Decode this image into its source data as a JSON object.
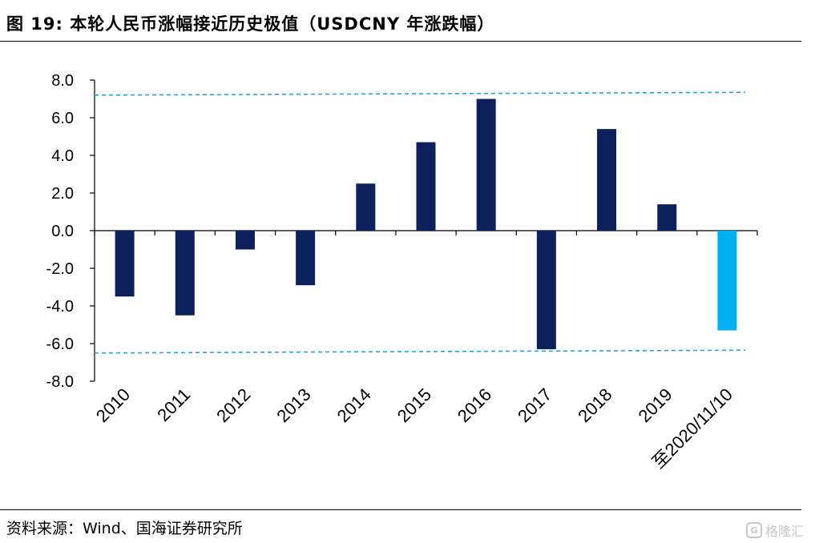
{
  "figure_title": "图 19:  本轮人民币涨幅接近历史极值（USDCNY 年涨跌幅）",
  "source_note": "资料来源：Wind、国海证券研究所",
  "watermark": {
    "brand_text": "格隆汇",
    "logo_glyph": "G"
  },
  "colors": {
    "bar_main": "#0c215b",
    "bar_highlight": "#00b0f0",
    "reference_line": "#19a6e0",
    "axis": "#000000"
  },
  "chart_data": {
    "type": "bar",
    "title": "本轮人民币涨幅接近历史极值（USDCNY 年涨跌幅）",
    "xlabel": "",
    "ylabel": "",
    "categories": [
      "2010",
      "2011",
      "2012",
      "2013",
      "2014",
      "2015",
      "2016",
      "2017",
      "2018",
      "2019",
      "至2020/11/10"
    ],
    "values": [
      -3.5,
      -4.5,
      -1.0,
      -2.9,
      2.5,
      4.7,
      7.0,
      -6.3,
      5.4,
      1.4,
      -5.3
    ],
    "highlight_category": "至2020/11/10",
    "ylim": [
      -8.0,
      8.0
    ],
    "yticks": [
      8.0,
      6.0,
      4.0,
      2.0,
      0.0,
      -2.0,
      -4.0,
      -6.0,
      -8.0
    ],
    "ytick_labels": [
      "8.0",
      "6.0",
      "4.0",
      "2.0",
      "0.0",
      "-2.0",
      "-4.0",
      "-6.0",
      "-8.0"
    ],
    "grid": false,
    "legend": "none",
    "reference_lines": [
      {
        "name": "upper-extreme",
        "y_start": 7.2,
        "y_end": 7.35,
        "style": "dashed"
      },
      {
        "name": "lower-extreme",
        "y_start": -6.5,
        "y_end": -6.35,
        "style": "dashed"
      }
    ]
  }
}
